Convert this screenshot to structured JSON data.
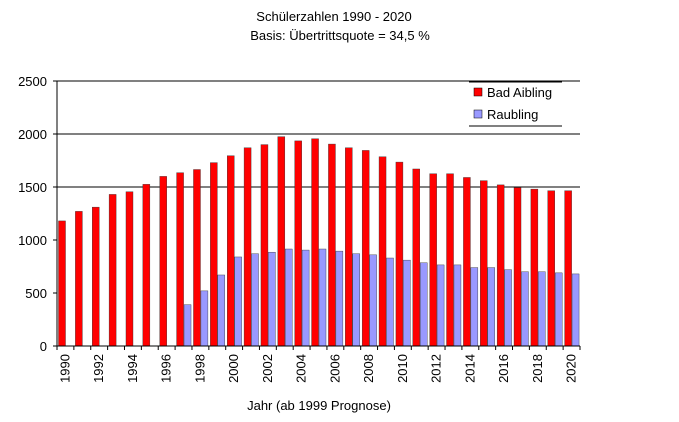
{
  "chart_data": {
    "type": "bar",
    "title": "Schülerzahlen 1990 - 2020",
    "subtitle": "Basis: Übertrittsquote = 34,5 %",
    "xlabel": "Jahr (ab 1999 Prognose)",
    "ylabel": "",
    "ylim": [
      0,
      2500
    ],
    "yticks": [
      "0",
      "500",
      "1000",
      "1500",
      "2000",
      "2500"
    ],
    "grid": "horizontal at 1500, 2000, 2500",
    "legend_position": "top-right",
    "categories": [
      "1990",
      "1991",
      "1992",
      "1993",
      "1994",
      "1995",
      "1996",
      "1997",
      "1998",
      "1999",
      "2000",
      "2001",
      "2002",
      "2003",
      "2004",
      "2005",
      "2006",
      "2007",
      "2008",
      "2009",
      "2010",
      "2011",
      "2012",
      "2013",
      "2014",
      "2015",
      "2016",
      "2017",
      "2018",
      "2019",
      "2020"
    ],
    "xtick_labels": [
      "1990",
      "",
      "1992",
      "",
      "1994",
      "",
      "1996",
      "",
      "1998",
      "",
      "2000",
      "",
      "2002",
      "",
      "2004",
      "",
      "2006",
      "",
      "2008",
      "",
      "2010",
      "",
      "2012",
      "",
      "2014",
      "",
      "2016",
      "",
      "2018",
      "",
      "2020"
    ],
    "series": [
      {
        "name": "Bad Aibling",
        "color": "#ff0000",
        "values": [
          1180,
          1270,
          1310,
          1430,
          1455,
          1525,
          1600,
          1635,
          1665,
          1730,
          1795,
          1870,
          1900,
          1975,
          1935,
          1955,
          1905,
          1870,
          1845,
          1785,
          1735,
          1670,
          1625,
          1625,
          1590,
          1560,
          1520,
          1495,
          1480,
          1465,
          1465
        ]
      },
      {
        "name": "Raubling",
        "color": "#9999ff",
        "values": [
          null,
          null,
          null,
          null,
          null,
          null,
          null,
          390,
          520,
          670,
          840,
          870,
          885,
          915,
          905,
          915,
          895,
          870,
          860,
          830,
          810,
          785,
          765,
          765,
          740,
          740,
          720,
          700,
          700,
          690,
          680
        ]
      }
    ]
  }
}
